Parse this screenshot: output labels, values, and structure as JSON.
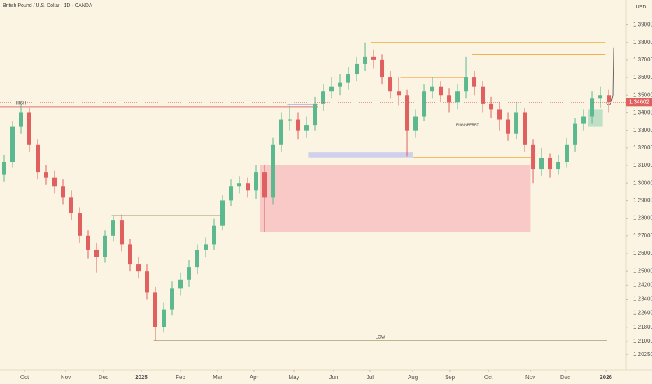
{
  "chart_data": {
    "type": "candlestick",
    "title": "British Pound / U.S. Dollar · 1D · OANDA",
    "currency": "USD",
    "up_color": "#5cb88f",
    "down_color": "#e0605f",
    "x": [
      0,
      1,
      2,
      3,
      4,
      5,
      6,
      7,
      8,
      9,
      10,
      11,
      12,
      13,
      14,
      15,
      16,
      17,
      18,
      19,
      20,
      21,
      22,
      23,
      24,
      25,
      26,
      27,
      28,
      29,
      30,
      31,
      32,
      33,
      34,
      35,
      36,
      37,
      38,
      39,
      40,
      41,
      42,
      43,
      44,
      45,
      46,
      47,
      48,
      49,
      50,
      51,
      52,
      53,
      54,
      55,
      56,
      57,
      58,
      59,
      60,
      61,
      62,
      63,
      64,
      65,
      66,
      67,
      68,
      69,
      70,
      71,
      72
    ],
    "open": [
      1.305,
      1.312,
      1.332,
      1.34,
      1.322,
      1.306,
      1.303,
      1.298,
      1.292,
      1.283,
      1.27,
      1.262,
      1.258,
      1.27,
      1.279,
      1.265,
      1.254,
      1.25,
      1.238,
      1.218,
      1.228,
      1.24,
      1.245,
      1.252,
      1.262,
      1.265,
      1.276,
      1.29,
      1.298,
      1.3,
      1.296,
      1.306,
      1.292,
      1.322,
      1.336,
      1.336,
      1.33,
      1.333,
      1.345,
      1.352,
      1.355,
      1.357,
      1.362,
      1.368,
      1.372,
      1.37,
      1.36,
      1.352,
      1.35,
      1.33,
      1.338,
      1.352,
      1.355,
      1.35,
      1.346,
      1.352,
      1.36,
      1.355,
      1.345,
      1.342,
      1.336,
      1.328,
      1.34,
      1.322,
      1.308,
      1.314,
      1.308,
      1.312,
      1.322,
      1.334,
      1.338,
      1.348,
      1.35
    ],
    "high": [
      1.316,
      1.335,
      1.345,
      1.343,
      1.325,
      1.31,
      1.307,
      1.302,
      1.296,
      1.286,
      1.273,
      1.266,
      1.273,
      1.281,
      1.282,
      1.268,
      1.258,
      1.254,
      1.241,
      1.232,
      1.244,
      1.249,
      1.256,
      1.265,
      1.269,
      1.28,
      1.293,
      1.302,
      1.304,
      1.303,
      1.31,
      1.31,
      1.326,
      1.34,
      1.344,
      1.34,
      1.338,
      1.349,
      1.356,
      1.36,
      1.362,
      1.366,
      1.372,
      1.38,
      1.376,
      1.373,
      1.364,
      1.36,
      1.353,
      1.342,
      1.356,
      1.36,
      1.358,
      1.354,
      1.356,
      1.372,
      1.364,
      1.358,
      1.349,
      1.346,
      1.34,
      1.346,
      1.343,
      1.325,
      1.32,
      1.317,
      1.316,
      1.326,
      1.337,
      1.342,
      1.352,
      1.355,
      1.353
    ],
    "low": [
      1.301,
      1.309,
      1.328,
      1.318,
      1.302,
      1.299,
      1.294,
      1.288,
      1.279,
      1.266,
      1.257,
      1.249,
      1.255,
      1.267,
      1.261,
      1.25,
      1.246,
      1.234,
      1.21,
      1.215,
      1.225,
      1.236,
      1.241,
      1.248,
      1.258,
      1.262,
      1.273,
      1.287,
      1.294,
      1.292,
      1.291,
      1.272,
      1.288,
      1.318,
      1.33,
      1.325,
      1.326,
      1.33,
      1.341,
      1.348,
      1.35,
      1.353,
      1.358,
      1.364,
      1.365,
      1.356,
      1.348,
      1.344,
      1.315,
      1.326,
      1.335,
      1.348,
      1.346,
      1.34,
      1.342,
      1.348,
      1.35,
      1.34,
      1.337,
      1.33,
      1.324,
      1.325,
      1.318,
      1.3,
      1.304,
      1.303,
      1.305,
      1.309,
      1.318,
      1.33,
      1.334,
      1.343,
      1.34
    ],
    "close": [
      1.312,
      1.332,
      1.34,
      1.322,
      1.306,
      1.303,
      1.298,
      1.292,
      1.283,
      1.27,
      1.262,
      1.258,
      1.27,
      1.279,
      1.265,
      1.254,
      1.25,
      1.238,
      1.218,
      1.228,
      1.24,
      1.245,
      1.252,
      1.262,
      1.265,
      1.276,
      1.29,
      1.298,
      1.3,
      1.296,
      1.306,
      1.292,
      1.322,
      1.336,
      1.336,
      1.33,
      1.333,
      1.345,
      1.352,
      1.355,
      1.357,
      1.362,
      1.368,
      1.372,
      1.37,
      1.36,
      1.352,
      1.35,
      1.33,
      1.338,
      1.352,
      1.355,
      1.35,
      1.346,
      1.352,
      1.36,
      1.355,
      1.345,
      1.342,
      1.336,
      1.328,
      1.34,
      1.322,
      1.308,
      1.314,
      1.308,
      1.312,
      1.322,
      1.334,
      1.338,
      1.348,
      1.35,
      1.346
    ],
    "xlim": [
      -0.5,
      74.08
    ],
    "ylim": [
      1.1937,
      1.4041
    ],
    "xticks": [
      {
        "value": 2.42,
        "label": "Oct"
      },
      {
        "value": 7.33,
        "label": "Nov"
      },
      {
        "value": 11.83,
        "label": "Dec"
      },
      {
        "value": 16.33,
        "label": "2025"
      },
      {
        "value": 21,
        "label": "Feb"
      },
      {
        "value": 25.42,
        "label": "Mar"
      },
      {
        "value": 29.75,
        "label": "Apr"
      },
      {
        "value": 34.5,
        "label": "May"
      },
      {
        "value": 39.25,
        "label": "Jun"
      },
      {
        "value": 43.58,
        "label": "Jul"
      },
      {
        "value": 48.67,
        "label": "Aug"
      },
      {
        "value": 53.08,
        "label": "Sep"
      },
      {
        "value": 57.67,
        "label": "Oct"
      },
      {
        "value": 62.67,
        "label": "Nov"
      },
      {
        "value": 66.83,
        "label": "Dec"
      },
      {
        "value": 71.67,
        "label": "2026"
      }
    ],
    "yticks": [
      {
        "value": 1.39,
        "label": "1.39000"
      },
      {
        "value": 1.38,
        "label": "1.38000"
      },
      {
        "value": 1.37,
        "label": "1.37000"
      },
      {
        "value": 1.36,
        "label": "1.36000"
      },
      {
        "value": 1.35,
        "label": "1.35000"
      },
      {
        "value": 1.34,
        "label": "1.34000"
      },
      {
        "value": 1.33,
        "label": "1.33000"
      },
      {
        "value": 1.32,
        "label": "1.32000"
      },
      {
        "value": 1.31,
        "label": "1.31000"
      },
      {
        "value": 1.3,
        "label": "1.30000"
      },
      {
        "value": 1.29,
        "label": "1.29000"
      },
      {
        "value": 1.28,
        "label": "1.28000"
      },
      {
        "value": 1.27,
        "label": "1.27000"
      },
      {
        "value": 1.26,
        "label": "1.26000"
      },
      {
        "value": 1.25,
        "label": "1.25000"
      },
      {
        "value": 1.242,
        "label": "1.24200"
      },
      {
        "value": 1.234,
        "label": "1.23400"
      },
      {
        "value": 1.226,
        "label": "1.22600"
      },
      {
        "value": 1.218,
        "label": "1.21800"
      },
      {
        "value": 1.21,
        "label": "1.21000"
      },
      {
        "value": 1.2025,
        "label": "1.20250"
      }
    ],
    "last_price": {
      "value": 1.34602,
      "label": "1.34602",
      "color": "#e0605f"
    },
    "zones": [
      {
        "y": [
          1.272,
          1.31
        ],
        "x": [
          30.5,
          62.7
        ],
        "color": "#f8c9c6"
      },
      {
        "y": [
          1.3145,
          1.3175
        ],
        "x": [
          36.2,
          48.7
        ],
        "color": "#cfd0ee"
      },
      {
        "y": [
          1.332,
          1.342
        ],
        "x": [
          69.5,
          71.3
        ],
        "color": "#bfe0c6"
      }
    ],
    "levels": [
      {
        "text": "HIGH",
        "y": 1.3434,
        "x": [
          -0.5,
          37.4
        ],
        "color": "#e07070"
      },
      {
        "y": 1.3445,
        "x": [
          33.7,
          37.4
        ],
        "color": "#5566e0"
      },
      {
        "y": 1.38,
        "x": [
          43.7,
          71.6
        ],
        "color": "#f2a93b"
      },
      {
        "y": 1.373,
        "x": [
          55.75,
          71.6
        ],
        "color": "#f2a93b"
      },
      {
        "y": 1.36,
        "x": [
          47.2,
          54.9
        ],
        "color": "#f2a93b"
      },
      {
        "y": 1.3145,
        "x": [
          48.7,
          62.8
        ],
        "color": "#f2a93b"
      },
      {
        "text": "LOW",
        "y": 1.2105,
        "x": [
          17.8,
          71.8
        ],
        "color": "#b8ab84"
      },
      {
        "y": 1.2815,
        "x": [
          12.8,
          25.75
        ],
        "color": "#b8ab84"
      }
    ],
    "notes": [
      {
        "text": "ENGINEERED",
        "x": 55.2,
        "y": 1.333
      }
    ]
  }
}
